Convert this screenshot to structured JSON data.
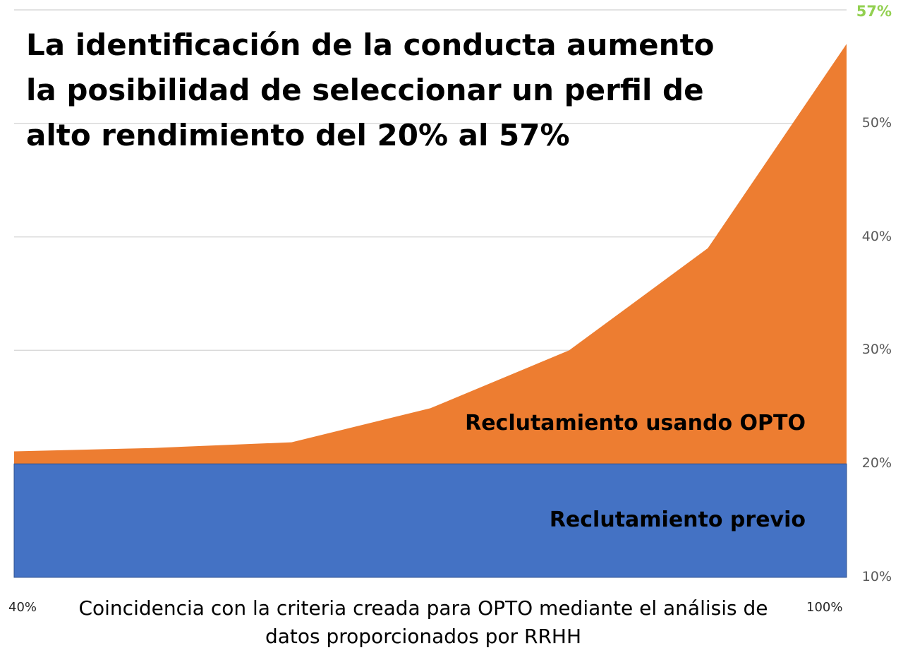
{
  "chart_data": {
    "type": "area",
    "title_lines": [
      "La identificación de la conducta aumento",
      "la posibilidad de seleccionar un perfil de",
      "alto rendimiento del 20% al 57%"
    ],
    "xlabel_lines": [
      "Coincidencia con la criteria creada para OPTO mediante el análisis de",
      "datos proporcionados por RRHH"
    ],
    "x_tick_labels": {
      "start": "40%",
      "end": "100%"
    },
    "x": [
      40,
      50,
      60,
      70,
      80,
      90,
      100
    ],
    "ylim": [
      10,
      60
    ],
    "y_ticks": [
      {
        "value": 10,
        "label": "10%"
      },
      {
        "value": 20,
        "label": "20%"
      },
      {
        "value": 30,
        "label": "30%"
      },
      {
        "value": 40,
        "label": "40%"
      },
      {
        "value": 50,
        "label": "50%"
      },
      {
        "value": 57,
        "label": "57%"
      }
    ],
    "gridlines_at": [
      20,
      30,
      40,
      50,
      60
    ],
    "grid": true,
    "series": [
      {
        "name": "Reclutamiento previo",
        "values": [
          20,
          20,
          20,
          20,
          20,
          20,
          20
        ],
        "color": "#4472c4"
      },
      {
        "name": "Reclutamiento usando OPTO",
        "values": [
          21.1,
          21.4,
          21.9,
          24.9,
          30,
          39,
          57
        ],
        "color": "#ed7d31"
      }
    ],
    "top_label_color": "#92d050"
  }
}
